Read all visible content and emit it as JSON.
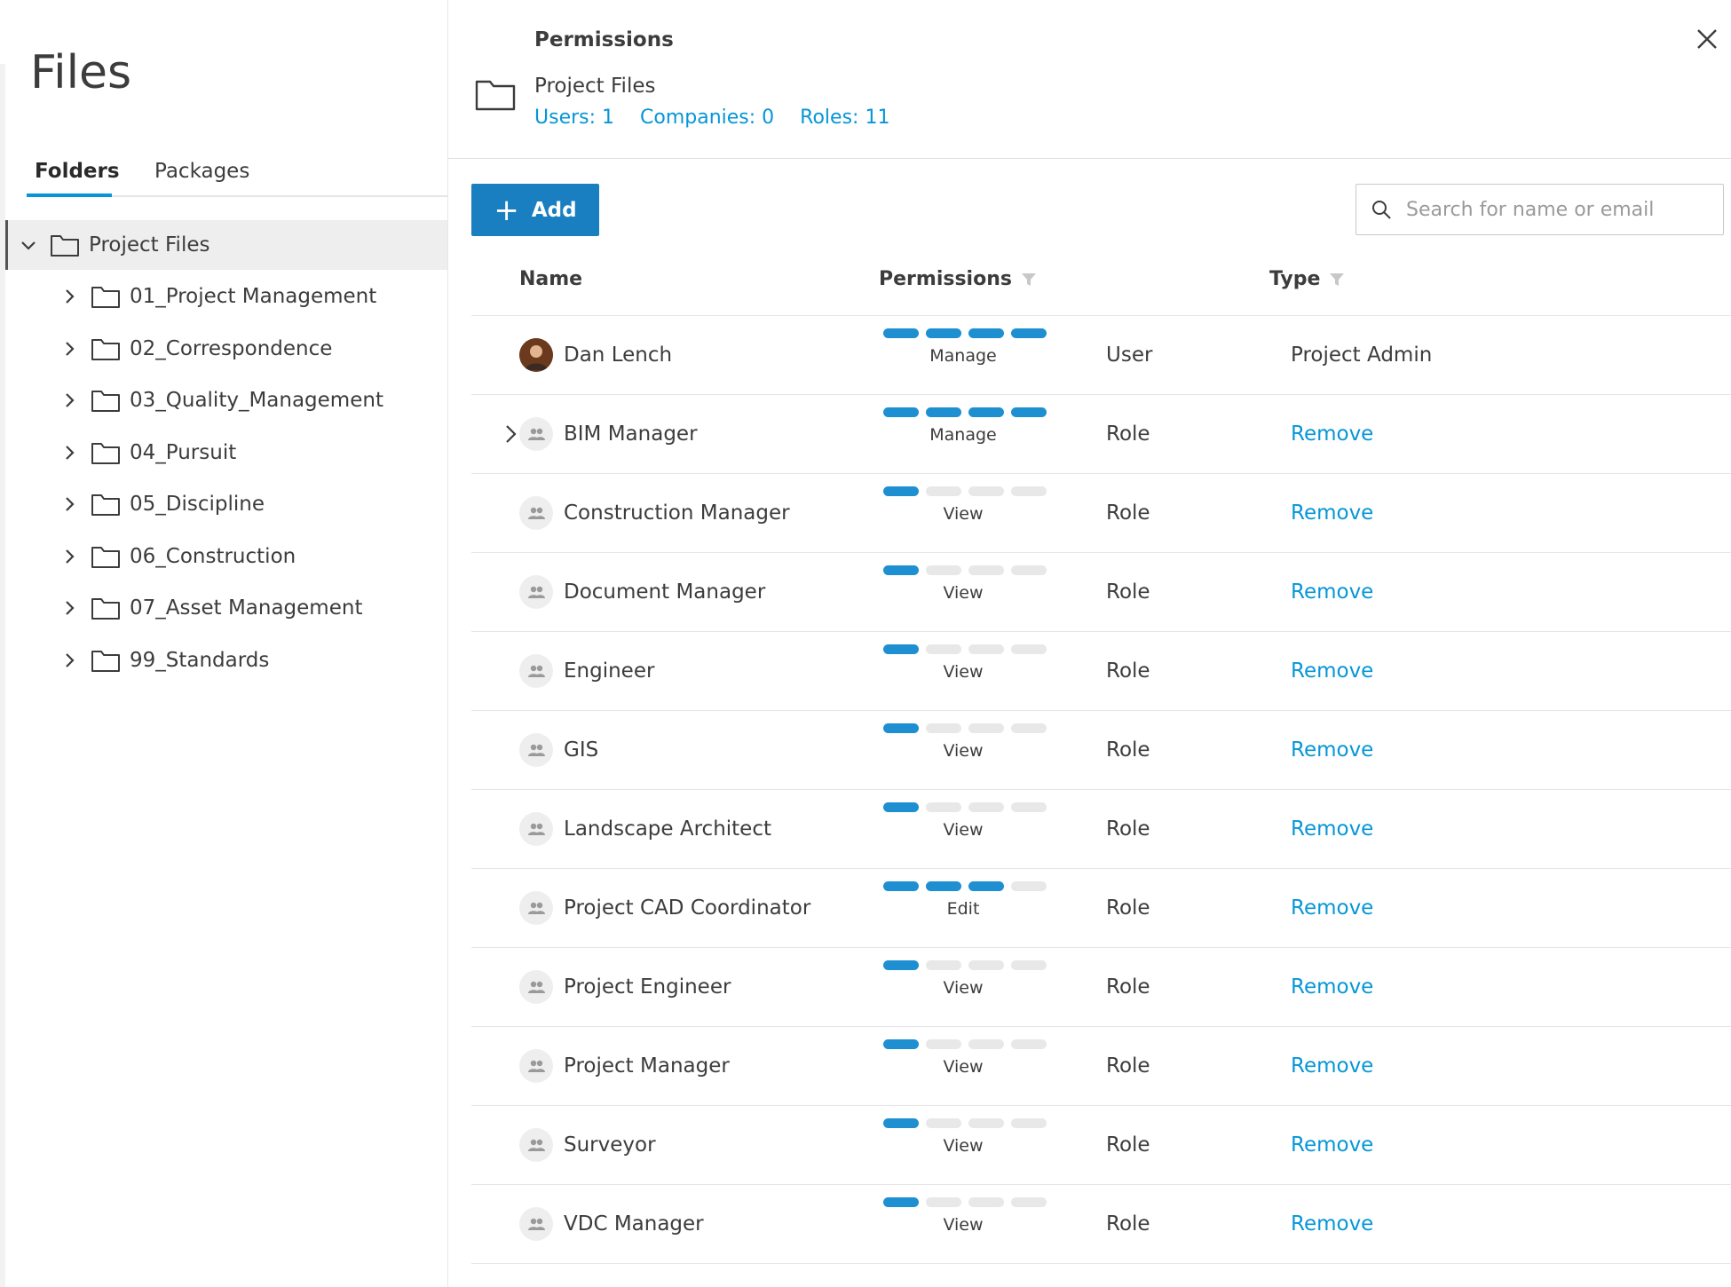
{
  "sidebar": {
    "title": "Files",
    "tabs": [
      {
        "label": "Folders",
        "active": true
      },
      {
        "label": "Packages",
        "active": false
      }
    ],
    "root": {
      "label": "Project Files",
      "expanded": true
    },
    "folders": [
      {
        "label": "01_Project Management"
      },
      {
        "label": "02_Correspondence"
      },
      {
        "label": "03_Quality_Management"
      },
      {
        "label": "04_Pursuit"
      },
      {
        "label": "05_Discipline"
      },
      {
        "label": "06_Construction"
      },
      {
        "label": "07_Asset Management"
      },
      {
        "label": "99_Standards"
      }
    ]
  },
  "panel": {
    "title": "Permissions",
    "folder_name": "Project Files",
    "counts": {
      "users": "Users: 1",
      "companies": "Companies: 0",
      "roles": "Roles: 11"
    },
    "add_label": "Add",
    "search_placeholder": "Search for name or email",
    "columns": {
      "name": "Name",
      "permissions": "Permissions",
      "type": "Type"
    },
    "accent_color": "#0696d7",
    "rows": [
      {
        "name": "Dan Lench",
        "kind": "user",
        "level": 4,
        "perm_label": "Manage",
        "type": "User",
        "action": "Project Admin",
        "action_link": false,
        "expandable": false
      },
      {
        "name": "BIM Manager",
        "kind": "role",
        "level": 4,
        "perm_label": "Manage",
        "type": "Role",
        "action": "Remove",
        "action_link": true,
        "expandable": true
      },
      {
        "name": "Construction Manager",
        "kind": "role",
        "level": 1,
        "perm_label": "View",
        "type": "Role",
        "action": "Remove",
        "action_link": true,
        "expandable": false
      },
      {
        "name": "Document Manager",
        "kind": "role",
        "level": 1,
        "perm_label": "View",
        "type": "Role",
        "action": "Remove",
        "action_link": true,
        "expandable": false
      },
      {
        "name": "Engineer",
        "kind": "role",
        "level": 1,
        "perm_label": "View",
        "type": "Role",
        "action": "Remove",
        "action_link": true,
        "expandable": false
      },
      {
        "name": "GIS",
        "kind": "role",
        "level": 1,
        "perm_label": "View",
        "type": "Role",
        "action": "Remove",
        "action_link": true,
        "expandable": false
      },
      {
        "name": "Landscape Architect",
        "kind": "role",
        "level": 1,
        "perm_label": "View",
        "type": "Role",
        "action": "Remove",
        "action_link": true,
        "expandable": false
      },
      {
        "name": "Project CAD Coordinator",
        "kind": "role",
        "level": 3,
        "perm_label": "Edit",
        "type": "Role",
        "action": "Remove",
        "action_link": true,
        "expandable": false
      },
      {
        "name": "Project Engineer",
        "kind": "role",
        "level": 1,
        "perm_label": "View",
        "type": "Role",
        "action": "Remove",
        "action_link": true,
        "expandable": false
      },
      {
        "name": "Project Manager",
        "kind": "role",
        "level": 1,
        "perm_label": "View",
        "type": "Role",
        "action": "Remove",
        "action_link": true,
        "expandable": false
      },
      {
        "name": "Surveyor",
        "kind": "role",
        "level": 1,
        "perm_label": "View",
        "type": "Role",
        "action": "Remove",
        "action_link": true,
        "expandable": false
      },
      {
        "name": "VDC Manager",
        "kind": "role",
        "level": 1,
        "perm_label": "View",
        "type": "Role",
        "action": "Remove",
        "action_link": true,
        "expandable": false
      }
    ]
  }
}
